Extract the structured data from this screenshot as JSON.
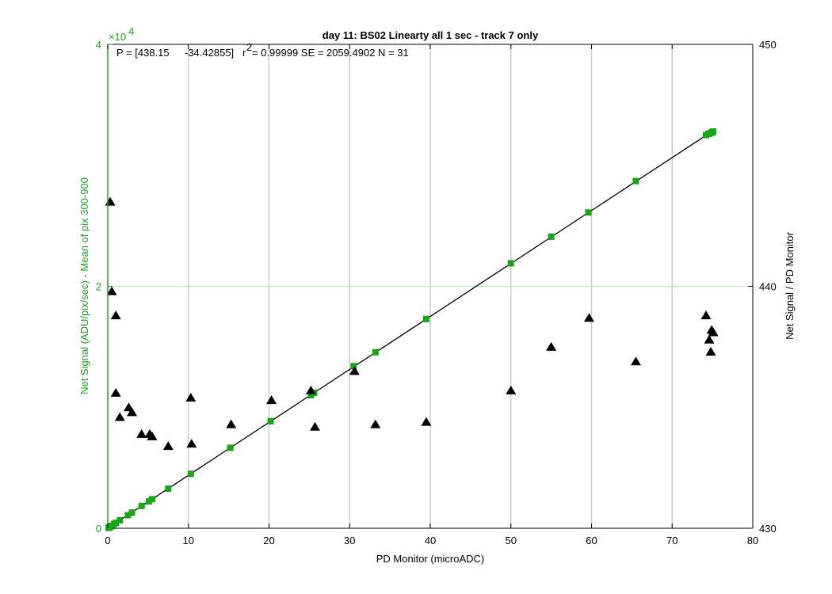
{
  "colors": {
    "left_axis": "#1aa81a",
    "marker_green": "#14a814",
    "marker_black": "#000000",
    "fit_line": "#000000",
    "grid": "#cccccc",
    "right_axis": "#000000"
  },
  "chart_data": {
    "type": "scatter",
    "title": "day 11: BS02   Linearty all 1 sec - track 7 only",
    "annotation": {
      "fit_text_a": "P = [438.15",
      "fit_text_b": "-34.42855]",
      "r_text": "r",
      "r_exp": "2",
      "fit_text_c": "= 0.99999 SE = 2059.4902 N = 31"
    },
    "xlabel": "PD Monitor (microADC)",
    "ylabel_left": "Net Signal (ADU/pix/sec) - Mean of pix 300-900",
    "ylabel_right": "Net Signal / PD Monitor",
    "left_exponent_base": "×10",
    "left_exponent_power": "4",
    "xlim": [
      0,
      80
    ],
    "ylim_left": [
      0,
      4
    ],
    "ylim_right": [
      430,
      450
    ],
    "x_ticks": [
      "0",
      "10",
      "20",
      "30",
      "40",
      "50",
      "60",
      "70",
      "80"
    ],
    "y_ticks_left": [
      "0",
      "2",
      "4"
    ],
    "y_ticks_right": [
      "430",
      "440",
      "450"
    ],
    "grid": "vertical lines at x ticks, horizontal line at y=2",
    "fit": {
      "slope": 438.15,
      "intercept": -34.42855,
      "x_range": [
        0,
        74.5
      ]
    },
    "series": [
      {
        "axis": "left",
        "marker": "square",
        "color": "#14a814",
        "units": "×10^4",
        "points": [
          [
            0.1,
            0.003
          ],
          [
            0.2,
            0.008
          ],
          [
            0.35,
            0.015
          ],
          [
            0.5,
            0.021
          ],
          [
            0.8,
            0.035
          ],
          [
            1.0,
            0.045
          ],
          [
            1.5,
            0.066
          ],
          [
            2.5,
            0.108
          ],
          [
            3.0,
            0.13
          ],
          [
            4.2,
            0.185
          ],
          [
            5.1,
            0.222
          ],
          [
            5.5,
            0.24
          ],
          [
            7.5,
            0.327
          ],
          [
            10.3,
            0.45
          ],
          [
            15.2,
            0.665
          ],
          [
            20.2,
            0.885
          ],
          [
            25.2,
            1.1
          ],
          [
            25.6,
            1.12
          ],
          [
            30.5,
            1.34
          ],
          [
            33.2,
            1.455
          ],
          [
            39.5,
            1.73
          ],
          [
            50.0,
            2.19
          ],
          [
            55.0,
            2.41
          ],
          [
            59.6,
            2.61
          ],
          [
            65.5,
            2.87
          ],
          [
            74.2,
            3.25
          ],
          [
            74.5,
            3.26
          ],
          [
            74.7,
            3.265
          ],
          [
            74.9,
            3.27
          ],
          [
            75.0,
            3.275
          ],
          [
            75.1,
            3.28
          ]
        ]
      },
      {
        "axis": "right",
        "marker": "triangle",
        "color": "#000000",
        "points": [
          [
            0.3,
            443.5
          ],
          [
            0.5,
            439.8
          ],
          [
            1.0,
            438.8
          ],
          [
            1.0,
            435.6
          ],
          [
            1.5,
            434.6
          ],
          [
            2.6,
            435.0
          ],
          [
            3.0,
            434.8
          ],
          [
            4.2,
            433.9
          ],
          [
            5.2,
            433.9
          ],
          [
            5.5,
            433.8
          ],
          [
            7.5,
            433.4
          ],
          [
            10.3,
            435.4
          ],
          [
            10.4,
            433.5
          ],
          [
            15.3,
            434.3
          ],
          [
            20.3,
            435.3
          ],
          [
            25.2,
            435.7
          ],
          [
            25.7,
            434.2
          ],
          [
            30.6,
            436.5
          ],
          [
            33.2,
            434.3
          ],
          [
            39.5,
            434.4
          ],
          [
            50.0,
            435.7
          ],
          [
            55.0,
            437.5
          ],
          [
            59.7,
            438.7
          ],
          [
            65.5,
            436.9
          ],
          [
            74.2,
            438.8
          ],
          [
            74.6,
            437.8
          ],
          [
            74.8,
            437.3
          ],
          [
            74.9,
            438.2
          ],
          [
            75.1,
            438.1
          ]
        ]
      }
    ]
  }
}
